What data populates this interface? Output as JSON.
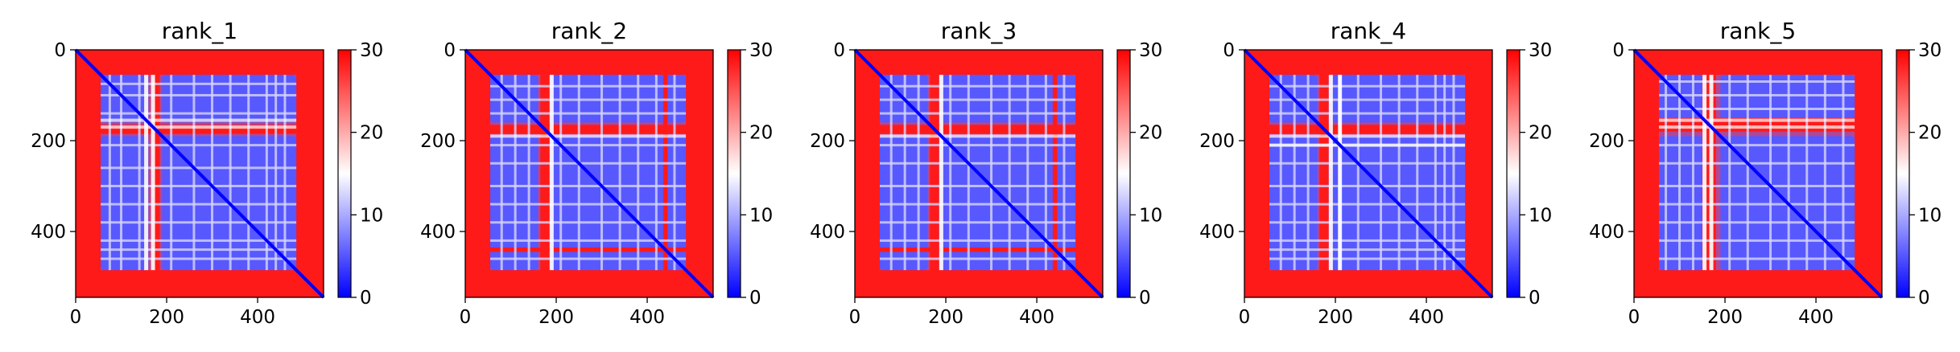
{
  "colormap": {
    "low": "#0000ff",
    "mid": "#ffffff",
    "high": "#ff0000"
  },
  "chart_data": [
    {
      "type": "heatmap",
      "title": "rank_1",
      "xlabel": "",
      "ylabel": "",
      "xlim": [
        0,
        545
      ],
      "ylim": [
        545,
        0
      ],
      "x_ticks": [
        0,
        200,
        400
      ],
      "y_ticks": [
        0,
        200,
        400
      ],
      "colorbar": {
        "range": [
          0,
          30
        ],
        "ticks": [
          0,
          10,
          20,
          30
        ]
      },
      "matrix_size": 545,
      "domain_blocks": [
        [
          55,
          160
        ],
        [
          190,
          485
        ]
      ],
      "high_distance_bands": [
        0,
        50,
        165,
        185,
        490,
        545
      ],
      "light_lines": [
        75,
        100,
        140,
        210,
        260,
        300,
        340,
        380,
        420,
        440,
        460
      ],
      "bright_columns": [
        155,
        170
      ]
    },
    {
      "type": "heatmap",
      "title": "rank_2",
      "xlabel": "",
      "ylabel": "",
      "xlim": [
        0,
        545
      ],
      "ylim": [
        545,
        0
      ],
      "x_ticks": [
        0,
        200,
        400
      ],
      "y_ticks": [
        0,
        200,
        400
      ],
      "colorbar": {
        "range": [
          0,
          30
        ],
        "ticks": [
          0,
          10,
          20,
          30
        ]
      },
      "matrix_size": 545,
      "domain_blocks": [
        [
          55,
          160
        ],
        [
          190,
          485
        ]
      ],
      "high_distance_bands": [
        0,
        50,
        165,
        185,
        435,
        445,
        490,
        545
      ],
      "light_lines": [
        80,
        110,
        140,
        210,
        250,
        300,
        340,
        380,
        420,
        460
      ],
      "bright_columns": [
        190
      ]
    },
    {
      "type": "heatmap",
      "title": "rank_3",
      "xlabel": "",
      "ylabel": "",
      "xlim": [
        0,
        545
      ],
      "ylim": [
        545,
        0
      ],
      "x_ticks": [
        0,
        200,
        400
      ],
      "y_ticks": [
        0,
        200,
        400
      ],
      "colorbar": {
        "range": [
          0,
          30
        ],
        "ticks": [
          0,
          10,
          20,
          30
        ]
      },
      "matrix_size": 545,
      "domain_blocks": [
        [
          55,
          160
        ],
        [
          190,
          485
        ]
      ],
      "high_distance_bands": [
        0,
        50,
        165,
        185,
        435,
        445,
        490,
        545
      ],
      "light_lines": [
        80,
        110,
        140,
        210,
        250,
        300,
        340,
        380,
        420,
        460
      ],
      "bright_columns": [
        190
      ]
    },
    {
      "type": "heatmap",
      "title": "rank_4",
      "xlabel": "",
      "ylabel": "",
      "xlim": [
        0,
        545
      ],
      "ylim": [
        545,
        0
      ],
      "x_ticks": [
        0,
        200,
        400
      ],
      "y_ticks": [
        0,
        200,
        400
      ],
      "colorbar": {
        "range": [
          0,
          30
        ],
        "ticks": [
          0,
          10,
          20,
          30
        ]
      },
      "matrix_size": 545,
      "domain_blocks": [
        [
          55,
          160
        ],
        [
          190,
          485
        ]
      ],
      "high_distance_bands": [
        0,
        50,
        165,
        185,
        490,
        545
      ],
      "light_lines": [
        80,
        110,
        140,
        210,
        250,
        300,
        340,
        380,
        420,
        440,
        460
      ],
      "bright_columns": [
        190,
        210
      ]
    },
    {
      "type": "heatmap",
      "title": "rank_5",
      "xlabel": "",
      "ylabel": "",
      "xlim": [
        0,
        545
      ],
      "ylim": [
        545,
        0
      ],
      "x_ticks": [
        0,
        200,
        400
      ],
      "y_ticks": [
        0,
        200,
        400
      ],
      "colorbar": {
        "range": [
          0,
          30
        ],
        "ticks": [
          0,
          10,
          20,
          30
        ]
      },
      "matrix_size": 545,
      "domain_blocks": [
        [
          55,
          160
        ],
        [
          190,
          485
        ]
      ],
      "high_distance_bands": [
        0,
        50,
        150,
        180,
        490,
        545
      ],
      "light_lines": [
        70,
        100,
        130,
        210,
        250,
        300,
        340,
        380,
        420,
        460
      ],
      "bright_columns": [
        155,
        170
      ]
    }
  ]
}
